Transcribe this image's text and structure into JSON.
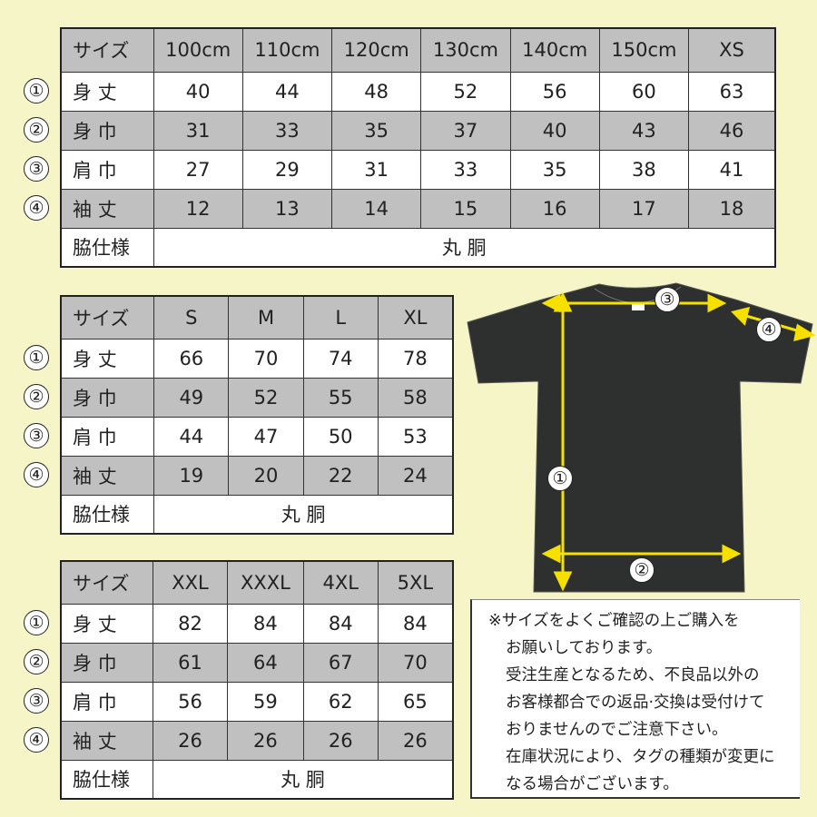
{
  "row_markers": [
    "①",
    "②",
    "③",
    "④"
  ],
  "colors": {
    "background": "#f5f5c8",
    "header_gray": "#c0c0c0",
    "shirt": "#2d302e",
    "arrow": "#f5e000"
  },
  "tables": [
    {
      "header": [
        "サイズ",
        "100cm",
        "110cm",
        "120cm",
        "130cm",
        "140cm",
        "150cm",
        "XS"
      ],
      "rows": [
        {
          "label": "身 丈",
          "values": [
            "40",
            "44",
            "48",
            "52",
            "56",
            "60",
            "63"
          ]
        },
        {
          "label": "身 巾",
          "values": [
            "31",
            "33",
            "35",
            "37",
            "40",
            "43",
            "46"
          ]
        },
        {
          "label": "肩 巾",
          "values": [
            "27",
            "29",
            "31",
            "33",
            "35",
            "38",
            "41"
          ]
        },
        {
          "label": "袖 丈",
          "values": [
            "12",
            "13",
            "14",
            "15",
            "16",
            "17",
            "18"
          ]
        }
      ],
      "side_label": "脇仕様",
      "side_value": "丸 胴"
    },
    {
      "header": [
        "サイズ",
        "S",
        "M",
        "L",
        "XL"
      ],
      "rows": [
        {
          "label": "身 丈",
          "values": [
            "66",
            "70",
            "74",
            "78"
          ]
        },
        {
          "label": "身 巾",
          "values": [
            "49",
            "52",
            "55",
            "58"
          ]
        },
        {
          "label": "肩 巾",
          "values": [
            "44",
            "47",
            "50",
            "53"
          ]
        },
        {
          "label": "袖 丈",
          "values": [
            "19",
            "20",
            "22",
            "24"
          ]
        }
      ],
      "side_label": "脇仕様",
      "side_value": "丸 胴"
    },
    {
      "header": [
        "サイズ",
        "XXL",
        "XXXL",
        "4XL",
        "5XL"
      ],
      "rows": [
        {
          "label": "身 丈",
          "values": [
            "82",
            "84",
            "84",
            "84"
          ]
        },
        {
          "label": "身 巾",
          "values": [
            "61",
            "64",
            "67",
            "70"
          ]
        },
        {
          "label": "肩 巾",
          "values": [
            "56",
            "59",
            "62",
            "65"
          ]
        },
        {
          "label": "袖 丈",
          "values": [
            "26",
            "26",
            "26",
            "26"
          ]
        }
      ],
      "side_label": "脇仕様",
      "side_value": "丸 胴"
    }
  ],
  "diagram_markers": [
    "①",
    "②",
    "③",
    "④"
  ],
  "notes": [
    "※サイズをよくご確認の上ご購入を",
    "お願いしております。",
    "受注生産となるため、不良品以外の",
    "お客様都合での返品·交換は受付けて",
    "おりませんのでご注意下さい。",
    "在庫状況により、タグの種類が変更に",
    "なる場合がございます。"
  ]
}
